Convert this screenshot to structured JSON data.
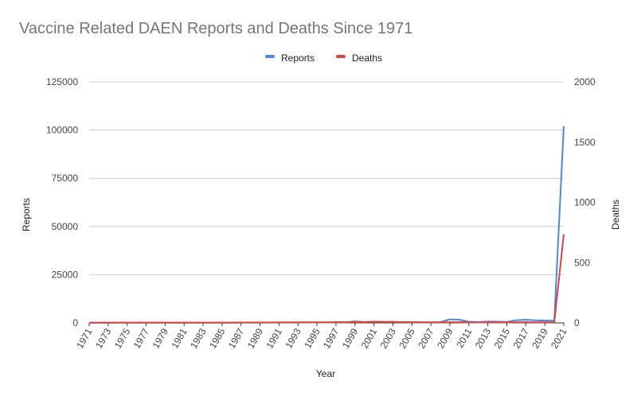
{
  "chart_data": {
    "type": "line",
    "title": "Vaccine Related DAEN Reports and Deaths Since 1971",
    "xlabel": "Year",
    "ylabel": "Reports",
    "y2label": "Deaths",
    "legend_position": "top",
    "grid": true,
    "x": [
      1971,
      1972,
      1973,
      1974,
      1975,
      1976,
      1977,
      1978,
      1979,
      1980,
      1981,
      1982,
      1983,
      1984,
      1985,
      1986,
      1987,
      1988,
      1989,
      1990,
      1991,
      1992,
      1993,
      1994,
      1995,
      1996,
      1997,
      1998,
      1999,
      2000,
      2001,
      2002,
      2003,
      2004,
      2005,
      2006,
      2007,
      2008,
      2009,
      2010,
      2011,
      2012,
      2013,
      2014,
      2015,
      2016,
      2017,
      2018,
      2019,
      2020,
      2021
    ],
    "x_tick_labels": [
      "1971",
      "1973",
      "1975",
      "1977",
      "1979",
      "1981",
      "1983",
      "1985",
      "1987",
      "1989",
      "1991",
      "1993",
      "1995",
      "1997",
      "1999",
      "2001",
      "2003",
      "2005",
      "2007",
      "2009",
      "2011",
      "2013",
      "2015",
      "2017",
      "2019",
      "2021"
    ],
    "ylim": [
      0,
      125000
    ],
    "y_ticks": [
      "0",
      "25000",
      "50000",
      "75000",
      "100000",
      "125000"
    ],
    "y2lim": [
      0,
      2000
    ],
    "y2_ticks": [
      "0",
      "500",
      "1000",
      "1500",
      "2000"
    ],
    "series": [
      {
        "name": "Reports",
        "axis": "left",
        "color": "#4a86e8",
        "values": [
          60,
          60,
          70,
          70,
          80,
          80,
          90,
          90,
          100,
          100,
          100,
          100,
          110,
          110,
          120,
          120,
          130,
          130,
          140,
          150,
          160,
          170,
          180,
          190,
          200,
          220,
          250,
          300,
          800,
          400,
          600,
          500,
          550,
          450,
          400,
          300,
          300,
          400,
          1800,
          1600,
          600,
          400,
          700,
          600,
          500,
          1400,
          1600,
          1300,
          1200,
          1100,
          102000
        ]
      },
      {
        "name": "Deaths",
        "axis": "right",
        "color": "#db4437",
        "values": [
          1,
          1,
          1,
          1,
          1,
          1,
          1,
          1,
          1,
          1,
          1,
          2,
          2,
          2,
          2,
          2,
          3,
          3,
          3,
          3,
          4,
          4,
          5,
          5,
          5,
          5,
          6,
          6,
          8,
          6,
          10,
          8,
          8,
          6,
          5,
          4,
          4,
          4,
          6,
          6,
          3,
          3,
          3,
          4,
          4,
          5,
          6,
          5,
          5,
          6,
          735
        ]
      }
    ]
  }
}
